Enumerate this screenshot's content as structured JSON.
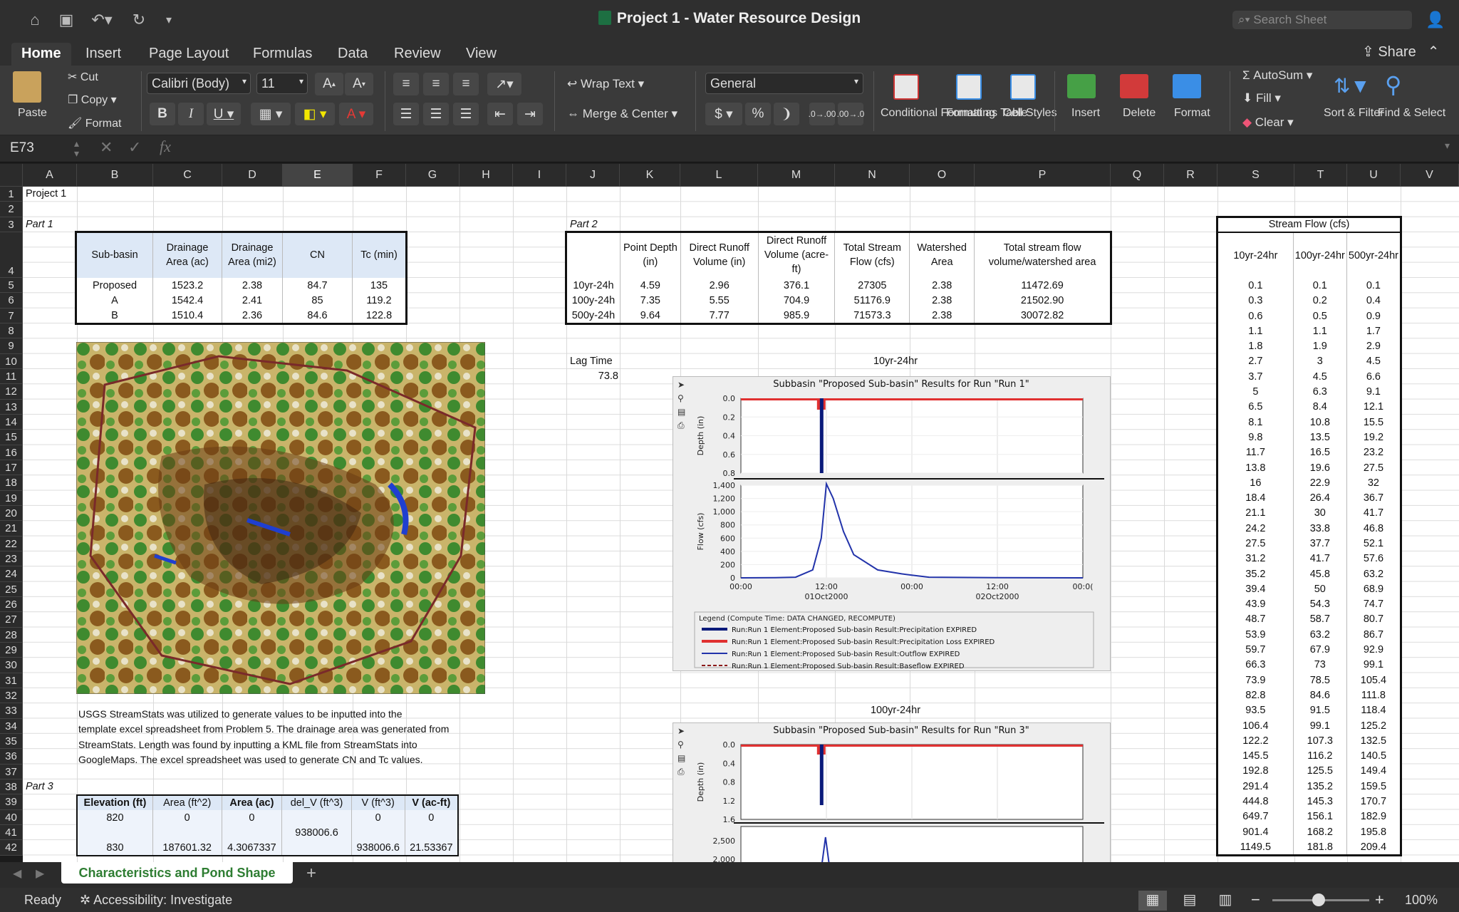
{
  "app": {
    "title": "Project 1 - Water Resource Design",
    "search_placeholder": "Search Sheet",
    "share": "Share"
  },
  "menu_tabs": [
    "Home",
    "Insert",
    "Page Layout",
    "Formulas",
    "Data",
    "Review",
    "View"
  ],
  "ribbon": {
    "paste": "Paste",
    "cut": "Cut",
    "copy": "Copy",
    "format_painter": "Format",
    "font_name": "Calibri (Body)",
    "font_size": "11",
    "wrap_text": "Wrap Text",
    "merge_center": "Merge & Center",
    "number_format": "General",
    "conditional_formatting": "Conditional Formatting",
    "format_as_table": "Format as Table",
    "cell_styles": "Cell Styles",
    "insert": "Insert",
    "delete": "Delete",
    "format": "Format",
    "autosum": "AutoSum",
    "fill": "Fill",
    "clear": "Clear",
    "sort_filter": "Sort & Filter",
    "find_select": "Find & Select"
  },
  "formula_bar": {
    "name_box": "E73",
    "fx": "fx",
    "formula": ""
  },
  "columns": [
    "A",
    "B",
    "C",
    "D",
    "E",
    "F",
    "G",
    "H",
    "I",
    "J",
    "K",
    "L",
    "M",
    "N",
    "O",
    "P",
    "Q",
    "R",
    "S",
    "T",
    "U",
    "V"
  ],
  "rows": [
    "1",
    "2",
    "3",
    "4",
    "5",
    "6",
    "7",
    "8",
    "9",
    "10",
    "11",
    "12",
    "13",
    "14",
    "15",
    "16",
    "17",
    "18",
    "19",
    "20",
    "21",
    "22",
    "23",
    "24",
    "25",
    "26",
    "27",
    "28",
    "29",
    "30",
    "31",
    "32",
    "33",
    "34",
    "35",
    "36",
    "37",
    "38",
    "39",
    "40",
    "41",
    "42"
  ],
  "cells": {
    "project": "Project 1",
    "part1": "Part 1",
    "part2": "Part 2",
    "part3": "Part 3",
    "lag_label": "Lag Time",
    "lag_value": "73.8",
    "chart1_title": "10yr-24hr",
    "chart2_title": "100yr-24hr",
    "note": [
      "USGS StreamStats was utilized to generate values to be inputted into the",
      "template excel spreadsheet from Problem 5. The drainage area was generated from",
      "StreamStats. Length was found by inputting a KML file from StreamStats into",
      "GoogleMaps. The excel spreadsheet was used to generate CN and Tc values."
    ]
  },
  "part1_table": {
    "headers": [
      "Sub-basin",
      "Drainage Area (ac)",
      "Drainage Area (mi2)",
      "CN",
      "Tc (min)"
    ],
    "rows": [
      [
        "Proposed",
        "1523.2",
        "2.38",
        "84.7",
        "135"
      ],
      [
        "A",
        "1542.4",
        "2.41",
        "85",
        "119.2"
      ],
      [
        "B",
        "1510.4",
        "2.36",
        "84.6",
        "122.8"
      ]
    ]
  },
  "part2_table": {
    "headers": [
      "",
      "Point Depth (in)",
      "Direct Runoff Volume (in)",
      "Direct Runoff Volume (acre-ft)",
      "Total Stream Flow (cfs)",
      "Watershed Area",
      "Total stream flow volume/watershed area"
    ],
    "rows": [
      [
        "10yr-24h",
        "4.59",
        "2.96",
        "376.1",
        "27305",
        "2.38",
        "11472.69"
      ],
      [
        "100y-24h",
        "7.35",
        "5.55",
        "704.9",
        "51176.9",
        "2.38",
        "21502.90"
      ],
      [
        "500y-24h",
        "9.64",
        "7.77",
        "985.9",
        "71573.3",
        "2.38",
        "30072.82"
      ]
    ]
  },
  "part3_table": {
    "headers": [
      "Elevation (ft)",
      "Area (ft^2)",
      "Area (ac)",
      "del_V (ft^3)",
      "V (ft^3)",
      "V (ac-ft)"
    ],
    "rows": [
      [
        "820",
        "0",
        "0",
        "",
        "0",
        "0"
      ],
      [
        "",
        "",
        "",
        "938006.6",
        "",
        ""
      ],
      [
        "830",
        "187601.32",
        "4.3067337",
        "",
        "938006.6",
        "21.53367"
      ]
    ]
  },
  "stream_flow": {
    "title": "Stream Flow (cfs)",
    "headers": [
      "10yr-24hr",
      "100yr-24hr",
      "500yr-24hr"
    ],
    "rows": [
      [
        "0.1",
        "0.1",
        "0.1"
      ],
      [
        "0.3",
        "0.2",
        "0.4"
      ],
      [
        "0.6",
        "0.5",
        "0.9"
      ],
      [
        "1.1",
        "1.1",
        "1.7"
      ],
      [
        "1.8",
        "1.9",
        "2.9"
      ],
      [
        "2.7",
        "3",
        "4.5"
      ],
      [
        "3.7",
        "4.5",
        "6.6"
      ],
      [
        "5",
        "6.3",
        "9.1"
      ],
      [
        "6.5",
        "8.4",
        "12.1"
      ],
      [
        "8.1",
        "10.8",
        "15.5"
      ],
      [
        "9.8",
        "13.5",
        "19.2"
      ],
      [
        "11.7",
        "16.5",
        "23.2"
      ],
      [
        "13.8",
        "19.6",
        "27.5"
      ],
      [
        "16",
        "22.9",
        "32"
      ],
      [
        "18.4",
        "26.4",
        "36.7"
      ],
      [
        "21.1",
        "30",
        "41.7"
      ],
      [
        "24.2",
        "33.8",
        "46.8"
      ],
      [
        "27.5",
        "37.7",
        "52.1"
      ],
      [
        "31.2",
        "41.7",
        "57.6"
      ],
      [
        "35.2",
        "45.8",
        "63.2"
      ],
      [
        "39.4",
        "50",
        "68.9"
      ],
      [
        "43.9",
        "54.3",
        "74.7"
      ],
      [
        "48.7",
        "58.7",
        "80.7"
      ],
      [
        "53.9",
        "63.2",
        "86.7"
      ],
      [
        "59.7",
        "67.9",
        "92.9"
      ],
      [
        "66.3",
        "73",
        "99.1"
      ],
      [
        "73.9",
        "78.5",
        "105.4"
      ],
      [
        "82.8",
        "84.6",
        "111.8"
      ],
      [
        "93.5",
        "91.5",
        "118.4"
      ],
      [
        "106.4",
        "99.1",
        "125.2"
      ],
      [
        "122.2",
        "107.3",
        "132.5"
      ],
      [
        "145.5",
        "116.2",
        "140.5"
      ],
      [
        "192.8",
        "125.5",
        "149.4"
      ],
      [
        "291.4",
        "135.2",
        "159.5"
      ],
      [
        "444.8",
        "145.3",
        "170.7"
      ],
      [
        "649.7",
        "156.1",
        "182.9"
      ],
      [
        "901.4",
        "168.2",
        "195.8"
      ],
      [
        "1149.5",
        "181.8",
        "209.4"
      ]
    ]
  },
  "chart1": {
    "title": "Subbasin \"Proposed Sub-basin\" Results for Run \"Run 1\"",
    "depth_label": "Depth (in)",
    "flow_label": "Flow (cfs)",
    "depth_ticks": [
      "0.0",
      "0.2",
      "0.4",
      "0.6",
      "0.8"
    ],
    "flow_ticks": [
      "1,400",
      "1,200",
      "1,000",
      "800",
      "600",
      "400",
      "200",
      "0"
    ],
    "time_ticks": [
      "00:00",
      "12:00",
      "00:00",
      "12:00",
      "00:0("
    ],
    "date_ticks": [
      "01Oct2000",
      "02Oct2000"
    ],
    "legend_title": "Legend (Compute Time: DATA CHANGED, RECOMPUTE)",
    "legend": [
      "Run:Run 1 Element:Proposed Sub-basin Result:Precipitation EXPIRED",
      "Run:Run 1 Element:Proposed Sub-basin Result:Precipitation Loss EXPIRED",
      "Run:Run 1 Element:Proposed Sub-basin Result:Outflow EXPIRED",
      "Run:Run 1 Element:Proposed Sub-basin Result:Baseflow EXPIRED"
    ],
    "legend_colors": [
      "#0a1a7a",
      "#e03030",
      "#2233aa",
      "#8b1a1a"
    ]
  },
  "chart2": {
    "title": "Subbasin \"Proposed Sub-basin\" Results for Run \"Run 3\"",
    "depth_label": "Depth (in)",
    "depth_ticks": [
      "0.0",
      "0.4",
      "0.8",
      "1.2",
      "1.6"
    ],
    "flow_ticks": [
      "2,500",
      "2,000"
    ]
  },
  "chart_data": [
    {
      "type": "line",
      "title": "Subbasin \"Proposed Sub-basin\" Results for Run \"Run 1\"",
      "ylabel": "Flow (cfs)",
      "ylim": [
        0,
        1400
      ],
      "x": [
        "00:00",
        "06:00",
        "09:00",
        "11:00",
        "12:00",
        "12:30",
        "13:00",
        "14:00",
        "15:00",
        "18:00",
        "21:00",
        "00:00",
        "03:00",
        "12:00",
        "00:00"
      ],
      "series": [
        {
          "name": "Run:Run 1 Element:Proposed Sub-basin Result:Outflow EXPIRED",
          "values": [
            0,
            2,
            10,
            120,
            600,
            1420,
            1200,
            700,
            350,
            120,
            60,
            40,
            10,
            2,
            0
          ]
        }
      ]
    },
    {
      "type": "bar",
      "title": "Subbasin \"Proposed Sub-basin\" Results for Run \"Run 1\"",
      "ylabel": "Depth (in)",
      "ylim": [
        0,
        0.8
      ],
      "note_series": [
        "Precipitation",
        "Precipitation Loss"
      ]
    }
  ],
  "sheet_tab": "Characteristics and Pond Shape",
  "status": {
    "ready": "Ready",
    "accessibility": "Accessibility: Investigate",
    "zoom": "100%"
  }
}
